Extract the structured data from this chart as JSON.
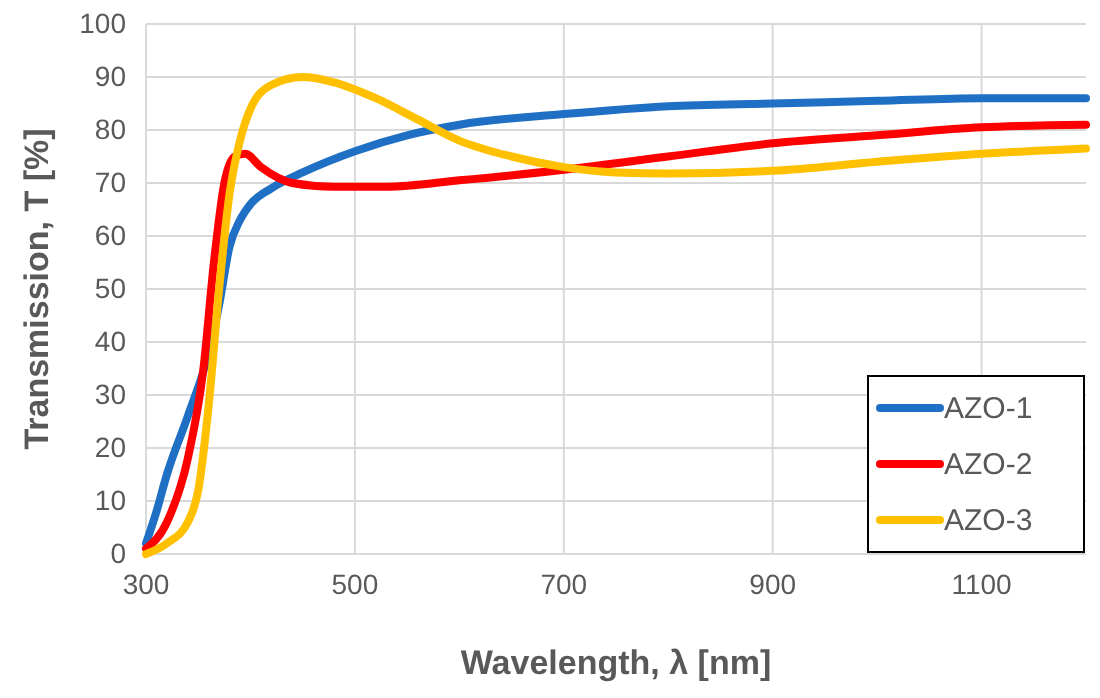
{
  "chart_data": {
    "type": "line",
    "xlabel": "Wavelength, λ [nm]",
    "ylabel": "Transmission, T [%]",
    "xlim": [
      300,
      1200
    ],
    "xticks": [
      300,
      500,
      700,
      900,
      1100
    ],
    "ylim": [
      0,
      100
    ],
    "yticks": [
      0,
      10,
      20,
      30,
      40,
      50,
      60,
      70,
      80,
      90,
      100
    ],
    "grid": true,
    "legend": "bottom right",
    "marker": "none",
    "line_style": "solid",
    "series": [
      {
        "name": "AZO-1",
        "color": "#1f6fc5",
        "x": [
          300,
          310,
          320,
          340,
          360,
          370,
          380,
          390,
          400,
          420,
          450,
          500,
          550,
          600,
          700,
          800,
          900,
          1000,
          1100,
          1200
        ],
        "values": [
          2,
          8,
          15,
          26,
          38,
          47,
          58,
          63,
          66,
          69,
          72,
          76,
          79,
          81,
          83,
          84.5,
          85,
          85.5,
          86,
          86
        ]
      },
      {
        "name": "AZO-2",
        "color": "#ff0000",
        "x": [
          300,
          320,
          340,
          355,
          365,
          375,
          385,
          395,
          410,
          440,
          480,
          530,
          600,
          700,
          800,
          900,
          1000,
          1100,
          1200
        ],
        "values": [
          1,
          6,
          18,
          35,
          55,
          70,
          75,
          75.5,
          73,
          70,
          69.3,
          69.3,
          70.5,
          72.5,
          75,
          77.5,
          79,
          80.5,
          81
        ]
      },
      {
        "name": "AZO-3",
        "color": "#ffc000",
        "x": [
          300,
          320,
          340,
          350,
          360,
          370,
          380,
          390,
          400,
          420,
          450,
          480,
          520,
          560,
          600,
          650,
          700,
          750,
          800,
          900,
          1000,
          1100,
          1200
        ],
        "values": [
          0,
          2,
          6,
          12,
          28,
          50,
          68,
          78,
          84,
          88.5,
          90,
          89,
          86,
          82,
          78,
          75,
          73,
          72,
          71.8,
          72.3,
          74,
          75.5,
          76.5
        ]
      }
    ]
  }
}
